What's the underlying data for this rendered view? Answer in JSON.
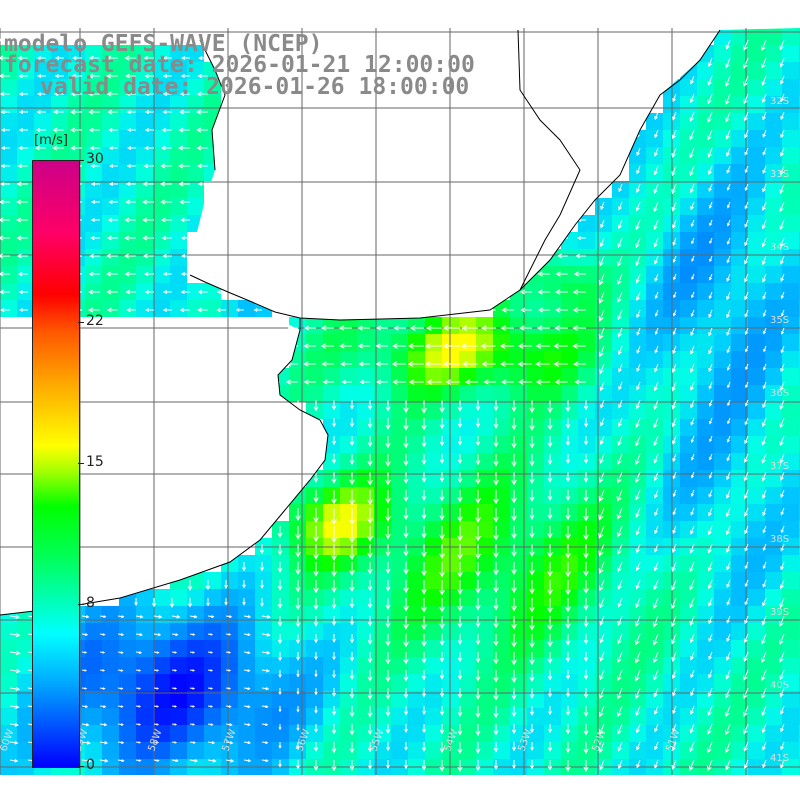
{
  "title": {
    "line1": "modelo GEFS-WAVE (NCEP)",
    "line2": "forecast date: 2026-01-21 12:00:00",
    "line3": "valid date: 2026-01-26 18:00:00"
  },
  "colorbar": {
    "units": "[m/s]",
    "ticks": [
      {
        "value": 30,
        "label": "30"
      },
      {
        "value": 22,
        "label": "22"
      },
      {
        "value": 15,
        "label": "15"
      },
      {
        "value": 8,
        "label": "8"
      },
      {
        "value": 0,
        "label": "0"
      }
    ],
    "min": 0,
    "max": 30
  },
  "map": {
    "field": "wind speed and direction",
    "lon_labels": [
      "60W",
      "59W",
      "58W",
      "57W",
      "56W",
      "55W",
      "54W",
      "53W",
      "52W",
      "51W"
    ],
    "lat_labels": [
      "32S",
      "33S",
      "34S",
      "35S",
      "36S",
      "37S",
      "38S",
      "39S",
      "40S",
      "41S"
    ],
    "colors": {
      "land": "#ffffff",
      "grid": "#666666",
      "coast": "#000000",
      "arrow": "#ffffff"
    }
  }
}
